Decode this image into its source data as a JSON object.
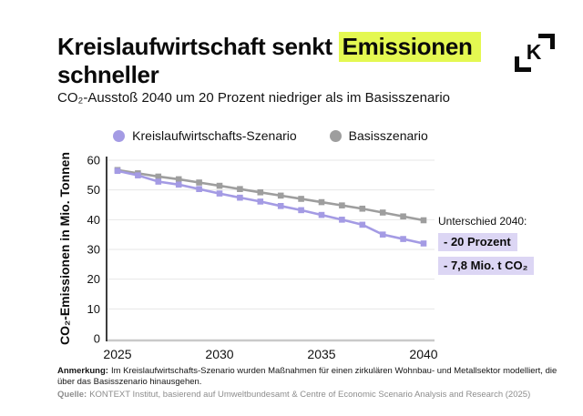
{
  "header": {
    "title_line1_pre": "Kreislaufwirtschaft senkt ",
    "title_highlight": "Emissionen",
    "title_line2": "schneller",
    "subtitle": "CO₂-Ausstoß 2040 um 20 Prozent niedriger als im Basisszenario",
    "logo_letter": "K"
  },
  "chart_data": {
    "type": "line",
    "title": "Kreislaufwirtschaft senkt Emissionen schneller",
    "x": [
      2025,
      2026,
      2027,
      2028,
      2029,
      2030,
      2031,
      2032,
      2033,
      2034,
      2035,
      2036,
      2037,
      2038,
      2039,
      2040
    ],
    "series": [
      {
        "name": "Kreislaufwirtschafts-Szenario",
        "color": "#a49be4",
        "values": [
          56.4,
          54.9,
          52.8,
          51.8,
          50.3,
          48.8,
          47.4,
          46.1,
          44.6,
          43.2,
          41.6,
          40.0,
          38.3,
          35.0,
          33.5,
          32.0
        ]
      },
      {
        "name": "Basisszenario",
        "color": "#9e9e9e",
        "values": [
          56.7,
          55.6,
          54.5,
          53.6,
          52.5,
          51.4,
          50.3,
          49.2,
          48.1,
          47.0,
          45.9,
          44.8,
          43.7,
          42.4,
          41.1,
          39.8
        ]
      }
    ],
    "xlabel": "",
    "ylabel": "CO₂-Emissionen in Mio. Tonnen",
    "ylim": [
      0,
      60
    ],
    "yticks": [
      0,
      10,
      20,
      30,
      40,
      50,
      60
    ],
    "xticks": [
      2025,
      2030,
      2035,
      2040
    ],
    "grid": true,
    "legend_position": "top-center",
    "marker": "square"
  },
  "annotation": {
    "title": "Unterschied 2040:",
    "chips": [
      "- 20 Prozent",
      "- 7,8 Mio. t CO₂"
    ]
  },
  "footer": {
    "note_label": "Anmerkung:",
    "note_text": "Im Kreislaufwirtschafts-Szenario wurden Maßnahmen für einen zirkulären Wohnbau- und Metallsektor modelliert, die über das Basisszenario hinausgehen.",
    "source_label": "Quelle:",
    "source_text": "KONTEXT Institut, basierend auf Umweltbundesamt & Centre of Economic Scenario Analysis and Research (2025)"
  },
  "colors": {
    "highlight_yellow": "#e4f851",
    "chip_lavender": "#dcd6f4",
    "series_purple": "#a49be4",
    "series_gray": "#9e9e9e",
    "gridline": "#e7e7e7",
    "x_axis": "#c9c9c9",
    "y_axis": "#3d3d3d"
  }
}
